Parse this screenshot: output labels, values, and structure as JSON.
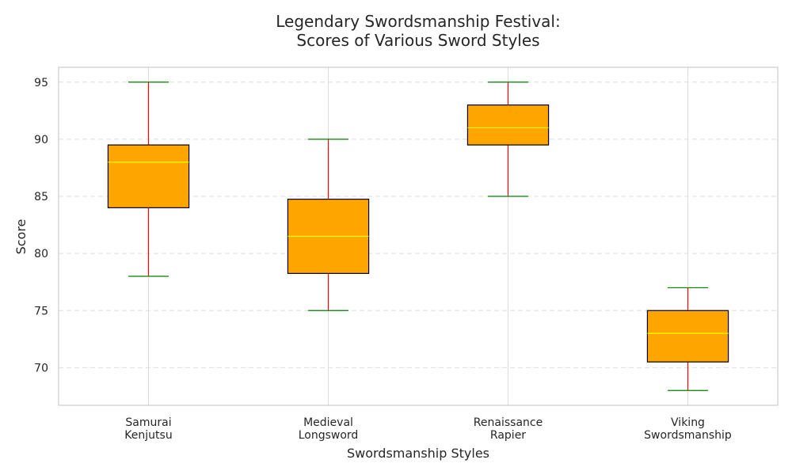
{
  "chart_data": {
    "type": "box",
    "title": [
      "Legendary Swordsmanship Festival:",
      "Scores of Various Sword Styles"
    ],
    "xlabel": "Swordsmanship Styles",
    "ylabel": "Score",
    "ylim": [
      66.7,
      96.3
    ],
    "yticks": [
      70,
      75,
      80,
      85,
      90,
      95
    ],
    "grid": true,
    "categories": [
      [
        "Samurai",
        "Kenjutsu"
      ],
      [
        "Medieval",
        "Longsword"
      ],
      [
        "Renaissance",
        "Rapier"
      ],
      [
        "Viking",
        "Swordsmanship"
      ]
    ],
    "boxes": [
      {
        "min": 78,
        "q1": 84,
        "median": 88,
        "q3": 89.5,
        "max": 95
      },
      {
        "min": 75,
        "q1": 78.25,
        "median": 81.5,
        "q3": 84.75,
        "max": 90
      },
      {
        "min": 85,
        "q1": 89.5,
        "median": 91,
        "q3": 93,
        "max": 95
      },
      {
        "min": 68,
        "q1": 70.5,
        "median": 73,
        "q3": 75,
        "max": 77
      }
    ],
    "colors": {
      "box_fill": "#FFA500",
      "box_edge": "#000000",
      "median": "#FFFF00",
      "whisker": "#FF0000",
      "cap": "#008000",
      "grid": "#dddddd",
      "frame": "#cccccc"
    }
  }
}
